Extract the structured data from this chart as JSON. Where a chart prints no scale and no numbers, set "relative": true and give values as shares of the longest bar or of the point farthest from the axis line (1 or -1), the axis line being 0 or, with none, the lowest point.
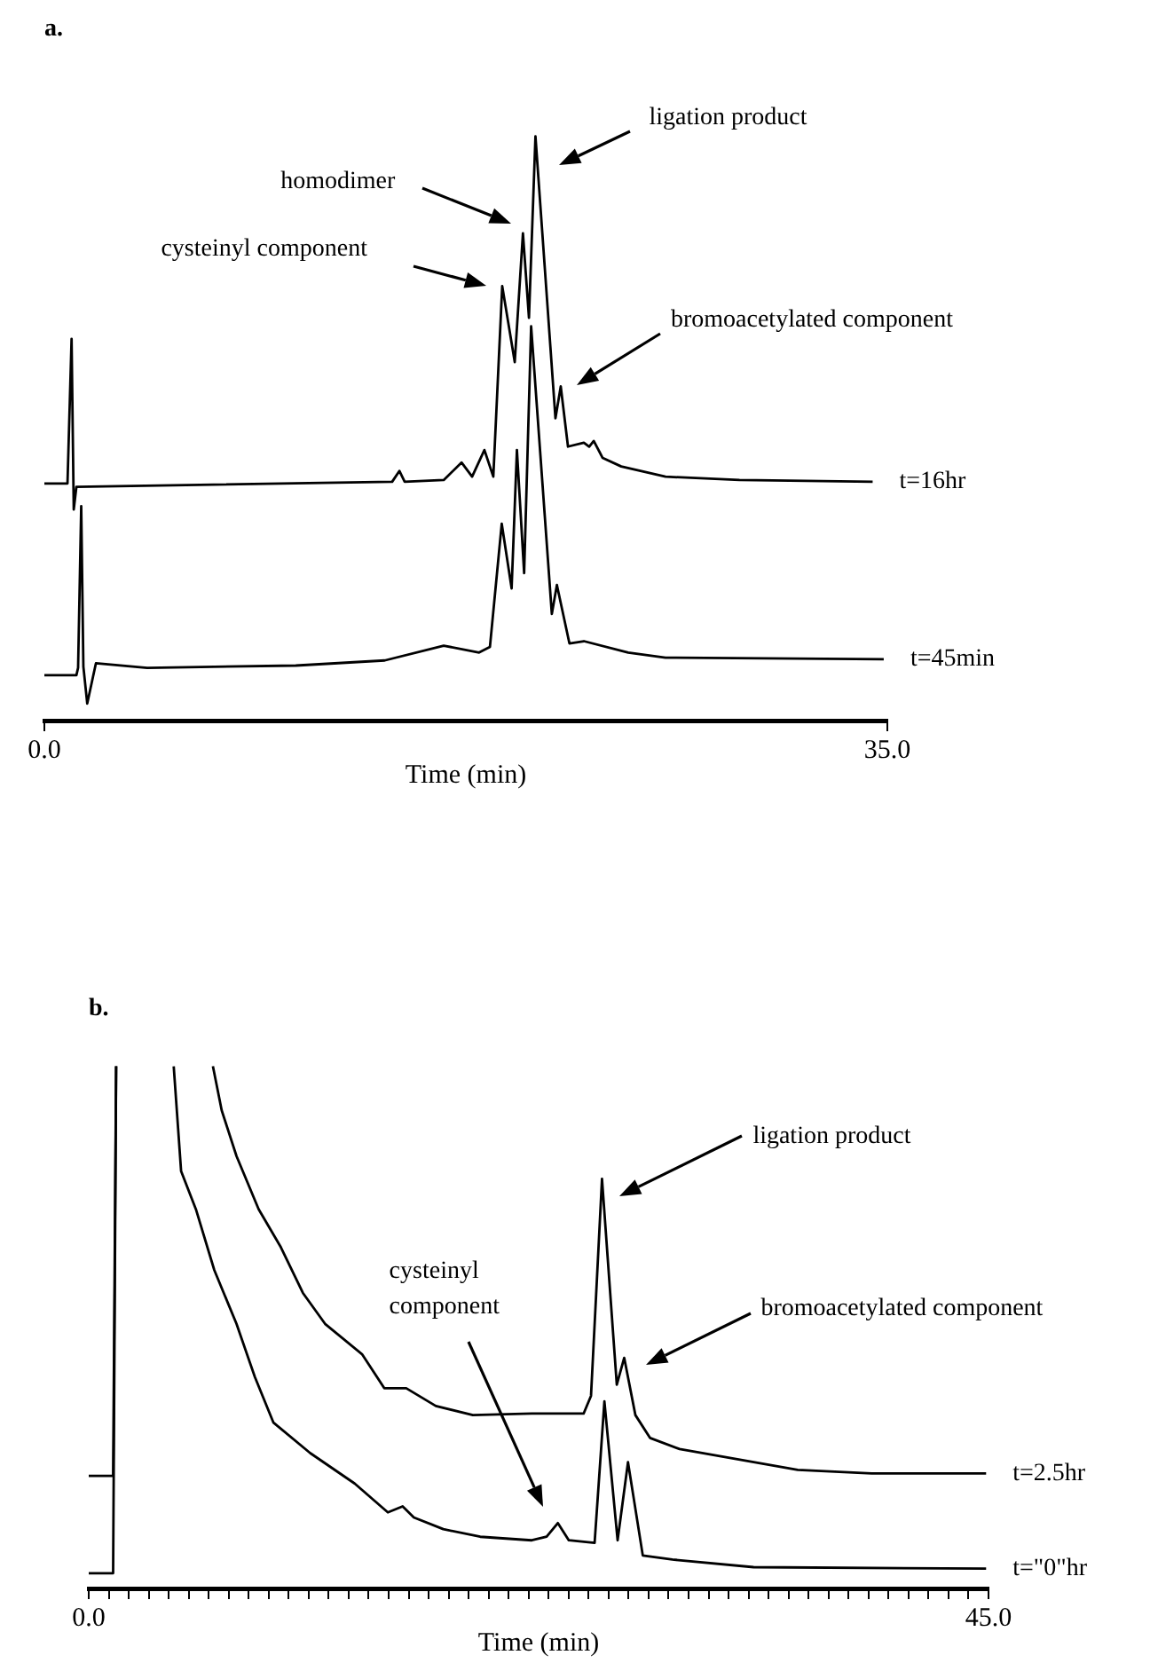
{
  "chart_data": [
    {
      "type": "line",
      "title": "a.",
      "xlabel": "Time (min)",
      "relative": true,
      "xlim": [
        0,
        35
      ],
      "xticks": [
        {
          "value": 0,
          "label": "0.0"
        },
        {
          "value": 35,
          "label": "35.0"
        }
      ],
      "series": [
        {
          "name": "t=16hr",
          "color": "#000000",
          "x": [
            0,
            0.96,
            1.13,
            1.22,
            1.33,
            14.44,
            14.74,
            14.96,
            16.58,
            17.32,
            17.76,
            18.27,
            18.64,
            19.01,
            19.53,
            19.87,
            20.12,
            20.39,
            21.22,
            21.44,
            21.74,
            22.4,
            22.62,
            22.81,
            23.18,
            23.95,
            25.79,
            28.86,
            34.39
          ],
          "values": [
            0.388,
            0.388,
            0.643,
            0.342,
            0.382,
            0.391,
            0.41,
            0.391,
            0.394,
            0.425,
            0.4,
            0.447,
            0.4,
            0.736,
            0.602,
            0.829,
            0.68,
            1,
            0.503,
            0.559,
            0.453,
            0.46,
            0.453,
            0.463,
            0.433,
            0.418,
            0.4,
            0.394,
            0.391
          ]
        },
        {
          "name": "t=45min",
          "color": "#000000",
          "x": [
            0,
            1.33,
            1.4,
            1.53,
            1.62,
            1.78,
            2.14,
            4.27,
            10.44,
            14.13,
            16.58,
            18.05,
            18.5,
            18.99,
            19.4,
            19.62,
            19.92,
            20.21,
            21.07,
            21.28,
            21.8,
            22.4,
            24.24,
            25.79,
            34.85
          ],
          "values": [
            0.05,
            0.05,
            0.063,
            0.348,
            0.065,
            0,
            0.071,
            0.063,
            0.067,
            0.076,
            0.102,
            0.09,
            0.1,
            0.317,
            0.203,
            0.447,
            0.23,
            0.665,
            0.158,
            0.209,
            0.106,
            0.11,
            0.09,
            0.081,
            0.078
          ]
        }
      ],
      "annotations": [
        "ligation product",
        "homodimer",
        "cysteinyl component",
        "bromoacetylated component"
      ]
    },
    {
      "type": "line",
      "title": "b.",
      "xlabel": "Time (min)",
      "relative": true,
      "xlim": [
        0,
        45
      ],
      "xticks": [
        {
          "value": 0,
          "label": "0.0"
        },
        {
          "value": 1,
          "label": null
        },
        {
          "value": 2,
          "label": null
        },
        {
          "value": 3,
          "label": null
        },
        {
          "value": 4,
          "label": null
        },
        {
          "value": 5,
          "label": null
        },
        {
          "value": 6,
          "label": null
        },
        {
          "value": 7,
          "label": null
        },
        {
          "value": 8,
          "label": null
        },
        {
          "value": 9,
          "label": null
        },
        {
          "value": 10,
          "label": null
        },
        {
          "value": 11,
          "label": null
        },
        {
          "value": 12,
          "label": null
        },
        {
          "value": 13,
          "label": null
        },
        {
          "value": 14,
          "label": null
        },
        {
          "value": 15,
          "label": null
        },
        {
          "value": 16,
          "label": null
        },
        {
          "value": 17,
          "label": null
        },
        {
          "value": 18,
          "label": null
        },
        {
          "value": 19,
          "label": null
        },
        {
          "value": 20,
          "label": null
        },
        {
          "value": 21,
          "label": null
        },
        {
          "value": 22,
          "label": null
        },
        {
          "value": 23,
          "label": null
        },
        {
          "value": 24,
          "label": null
        },
        {
          "value": 25,
          "label": null
        },
        {
          "value": 26,
          "label": null
        },
        {
          "value": 27,
          "label": null
        },
        {
          "value": 28,
          "label": null
        },
        {
          "value": 29,
          "label": null
        },
        {
          "value": 30,
          "label": null
        },
        {
          "value": 31,
          "label": null
        },
        {
          "value": 32,
          "label": null
        },
        {
          "value": 33,
          "label": null
        },
        {
          "value": 34,
          "label": null
        },
        {
          "value": 35,
          "label": null
        },
        {
          "value": 36,
          "label": null
        },
        {
          "value": 37,
          "label": null
        },
        {
          "value": 38,
          "label": null
        },
        {
          "value": 39,
          "label": null
        },
        {
          "value": 40,
          "label": null
        },
        {
          "value": 41,
          "label": null
        },
        {
          "value": 42,
          "label": null
        },
        {
          "value": 43,
          "label": null
        },
        {
          "value": 44,
          "label": null
        },
        {
          "value": 45,
          "label": "45.0"
        }
      ],
      "series": [
        {
          "name": "t=2.5hr",
          "color": "#000000",
          "x": [
            0,
            1.22,
            1.37,
            3,
            6.21,
            6.65,
            7.39,
            8.5,
            9.61,
            10.71,
            11.82,
            13.67,
            14.78,
            15.88,
            17.36,
            19.21,
            22.16,
            24.75,
            25.12,
            25.67,
            26.41,
            26.78,
            27.34,
            28.07,
            29.55,
            35.46,
            39.16,
            44.88
          ],
          "values": [
            0.192,
            0.192,
            1,
            null,
            1,
            0.913,
            0.823,
            0.718,
            0.643,
            0.553,
            0.492,
            0.432,
            0.365,
            0.365,
            0.33,
            0.312,
            0.315,
            0.315,
            0.35,
            0.778,
            0.372,
            0.425,
            0.312,
            0.267,
            0.245,
            0.204,
            0.197,
            0.197
          ]
        },
        {
          "name": "t=\"0\"hr",
          "color": "#000000",
          "x": [
            0,
            1.22,
            1.37,
            3,
            4.25,
            4.62,
            5.36,
            6.28,
            7.39,
            8.31,
            9.24,
            11.08,
            13.3,
            14.96,
            15.7,
            16.26,
            17.73,
            19.58,
            22.16,
            22.9,
            23.46,
            24.01,
            25.3,
            25.79,
            26.45,
            26.97,
            27.71,
            29.19,
            33.25,
            44.88
          ],
          "values": [
            0,
            0,
            1,
            null,
            1,
            0.793,
            0.718,
            0.598,
            0.492,
            0.387,
            0.297,
            0.237,
            0.177,
            0.12,
            0.132,
            0.11,
            0.087,
            0.072,
            0.065,
            0.072,
            0.099,
            0.065,
            0.06,
            0.339,
            0.065,
            0.219,
            0.035,
            0.027,
            0.012,
            0.009
          ]
        }
      ],
      "annotations": [
        "ligation product",
        "bromoacetylated component",
        "cysteinyl component"
      ]
    }
  ]
}
